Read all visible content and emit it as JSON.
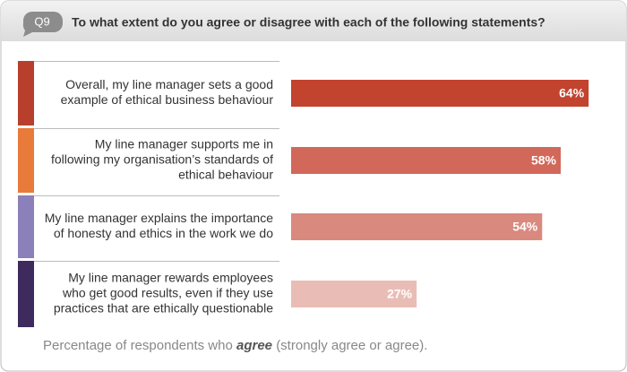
{
  "header": {
    "badge": "Q9",
    "question": "To what extent do you agree or disagree with each of the following statements?"
  },
  "chart_data": {
    "type": "bar",
    "orientation": "horizontal",
    "categories": [
      [
        "Overall, my line manager sets a good",
        "example of ethical business behaviour"
      ],
      [
        "My line manager supports me in",
        "following my organisation’s standards of",
        "ethical behaviour"
      ],
      [
        "My line manager explains the importance",
        "of honesty and ethics in the work we do"
      ],
      [
        "My line manager rewards employees",
        "who get good results, even if they use",
        "practices that are ethically questionable"
      ]
    ],
    "values": [
      64,
      58,
      54,
      27
    ],
    "value_labels": [
      "64%",
      "58%",
      "54%",
      "27%"
    ],
    "colors": [
      "#c2432e",
      "#d2685a",
      "#da897e",
      "#e9bdb6"
    ],
    "stripe_colors": [
      "#b83f2b",
      "#e87a3a",
      "#8b80b9",
      "#3e2a5c"
    ],
    "footnote": {
      "before": "Percentage of respondents who",
      "emphasis": "agree",
      "after": "(strongly agree or agree)."
    }
  }
}
